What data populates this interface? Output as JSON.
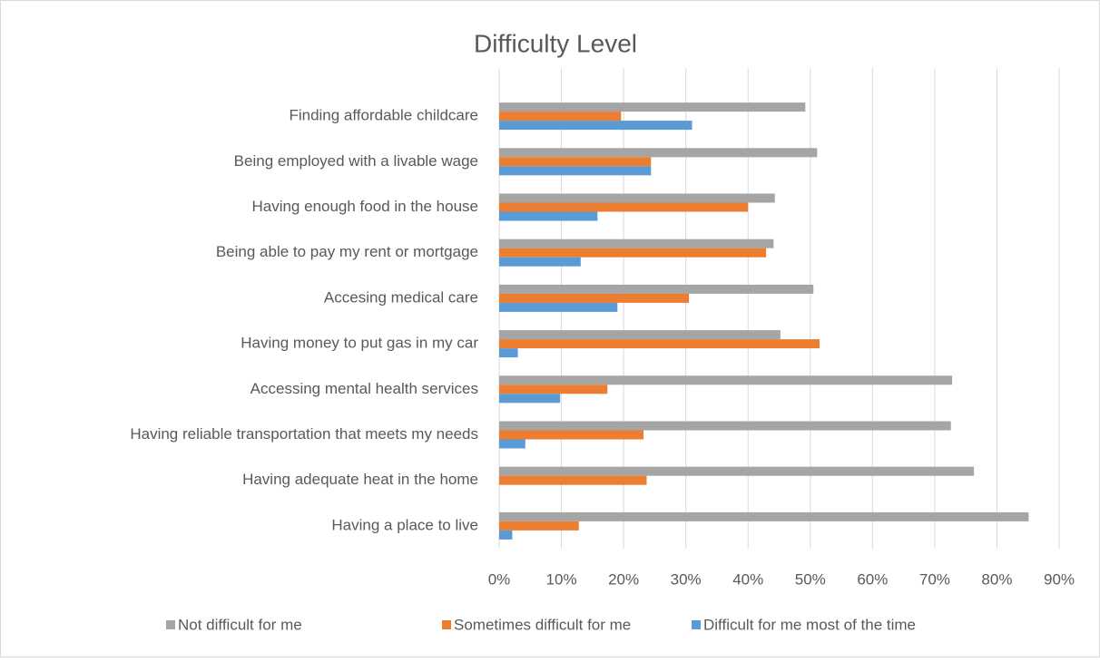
{
  "chart_data": {
    "type": "bar",
    "orientation": "horizontal",
    "title": "Difficulty Level",
    "categories": [
      "Finding affordable childcare",
      "Being employed with a livable wage",
      "Having enough food in the house",
      "Being able to pay my rent or mortgage",
      "Accesing medical care",
      "Having money to put gas in my car",
      "Accessing mental health services",
      "Having reliable transportation that meets my needs",
      "Having adequate heat in the home",
      "Having a place to live"
    ],
    "series": [
      {
        "name": "Not difficult for me",
        "color": "#a5a5a5",
        "values": [
          49.2,
          51.1,
          44.3,
          44.1,
          50.5,
          45.2,
          72.8,
          72.6,
          76.3,
          85.1
        ]
      },
      {
        "name": "Sometimes difficult for me",
        "color": "#ed7d31",
        "values": [
          19.6,
          24.4,
          40.0,
          42.9,
          30.5,
          51.5,
          17.4,
          23.2,
          23.7,
          12.8
        ]
      },
      {
        "name": "Difficult for me most of the time",
        "color": "#5b9bd5",
        "values": [
          31.0,
          24.4,
          15.8,
          13.1,
          19.0,
          3.0,
          9.8,
          4.2,
          0,
          2.1
        ]
      }
    ],
    "xlim": [
      0,
      90
    ],
    "xticks": [
      {
        "value": 0,
        "label": "0%"
      },
      {
        "value": 10,
        "label": "10%"
      },
      {
        "value": 20,
        "label": "20%"
      },
      {
        "value": 30,
        "label": "30%"
      },
      {
        "value": 40,
        "label": "40%"
      },
      {
        "value": 50,
        "label": "50%"
      },
      {
        "value": 60,
        "label": "60%"
      },
      {
        "value": 70,
        "label": "70%"
      },
      {
        "value": 80,
        "label": "80%"
      },
      {
        "value": 90,
        "label": "90%"
      }
    ],
    "grid": true,
    "legend": "bottom"
  }
}
